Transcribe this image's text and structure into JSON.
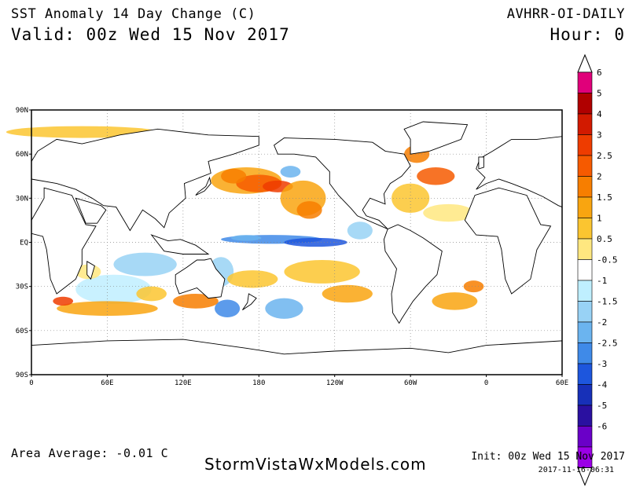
{
  "header": {
    "title": "SST Anomaly 14 Day Change (C)",
    "valid": "Valid: 00z Wed 15 Nov 2017",
    "product": "AVHRR-OI-DAILY",
    "hour": "Hour: 0"
  },
  "footer": {
    "area_average": "Area Average: -0.01 C",
    "credit": "StormVistaWxModels.com",
    "init": "Init: 00z Wed 15 Nov 2017",
    "timestamp": "2017-11-16-06:31"
  },
  "map": {
    "lat_labels": [
      "90N",
      "60N",
      "30N",
      "EQ",
      "30S",
      "60S",
      "90S"
    ],
    "lon_labels": [
      "0",
      "60E",
      "120E",
      "180",
      "120W",
      "60W",
      "0",
      "60E"
    ],
    "background": "#ffffff",
    "land_color": "#ffffff",
    "coast_color": "#000000",
    "grid": "dotted"
  },
  "colorbar": {
    "labels": [
      "6",
      "5",
      "4",
      "3",
      "2.5",
      "2",
      "1.5",
      "1",
      "0.5",
      "-0.5",
      "-1",
      "-1.5",
      "-2",
      "-2.5",
      "-3",
      "-4",
      "-5",
      "-6"
    ],
    "colors": [
      "#e0007a",
      "#b00000",
      "#d21a00",
      "#ee3c00",
      "#f65a00",
      "#f77e00",
      "#f9a510",
      "#fbc530",
      "#ffe780",
      "#ffffff",
      "#bfefff",
      "#98d2f5",
      "#6bb4ef",
      "#3f8ae8",
      "#1d56dd",
      "#1730b8",
      "#2a10a0",
      "#6a00c8",
      "#9a00e6"
    ]
  }
}
